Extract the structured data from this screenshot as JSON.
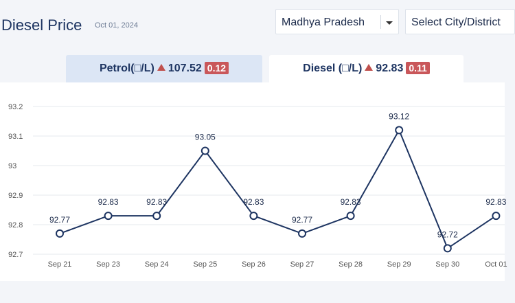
{
  "header": {
    "title": "Diesel Price",
    "date": "Oct 01, 2024",
    "state_select": "Madhya Pradesh",
    "city_select": "Select City/District"
  },
  "tabs": {
    "petrol": {
      "label": "Petrol(□/L)",
      "price": "107.52",
      "change": "0.12"
    },
    "diesel": {
      "label": "Diesel (□/L)",
      "price": "92.83",
      "change": "0.11"
    }
  },
  "colors": {
    "line": "#1d3461",
    "increase": "#c0504d",
    "badge": "#c9575a",
    "active_tab": "#ffffff",
    "inactive_tab": "#dce6f5"
  },
  "chart_data": {
    "type": "line",
    "title": "",
    "xlabel": "",
    "ylabel": "",
    "categories": [
      "Sep 21",
      "Sep 23",
      "Sep 24",
      "Sep 25",
      "Sep 26",
      "Sep 27",
      "Sep 28",
      "Sep 29",
      "Sep 30",
      "Oct 01"
    ],
    "values": [
      92.77,
      92.83,
      92.83,
      93.05,
      92.83,
      92.77,
      92.83,
      93.12,
      92.72,
      92.83
    ],
    "data_labels": [
      "92.77",
      "92.83",
      "92.83",
      "93.05",
      "92.83",
      "92.77",
      "92.83",
      "93.12",
      "92.72",
      "92.83"
    ],
    "yticks": [
      "92.7",
      "92.8",
      "92.9",
      "93",
      "93.1",
      "93.2"
    ],
    "ylim": [
      92.7,
      93.2
    ],
    "grid": true
  }
}
